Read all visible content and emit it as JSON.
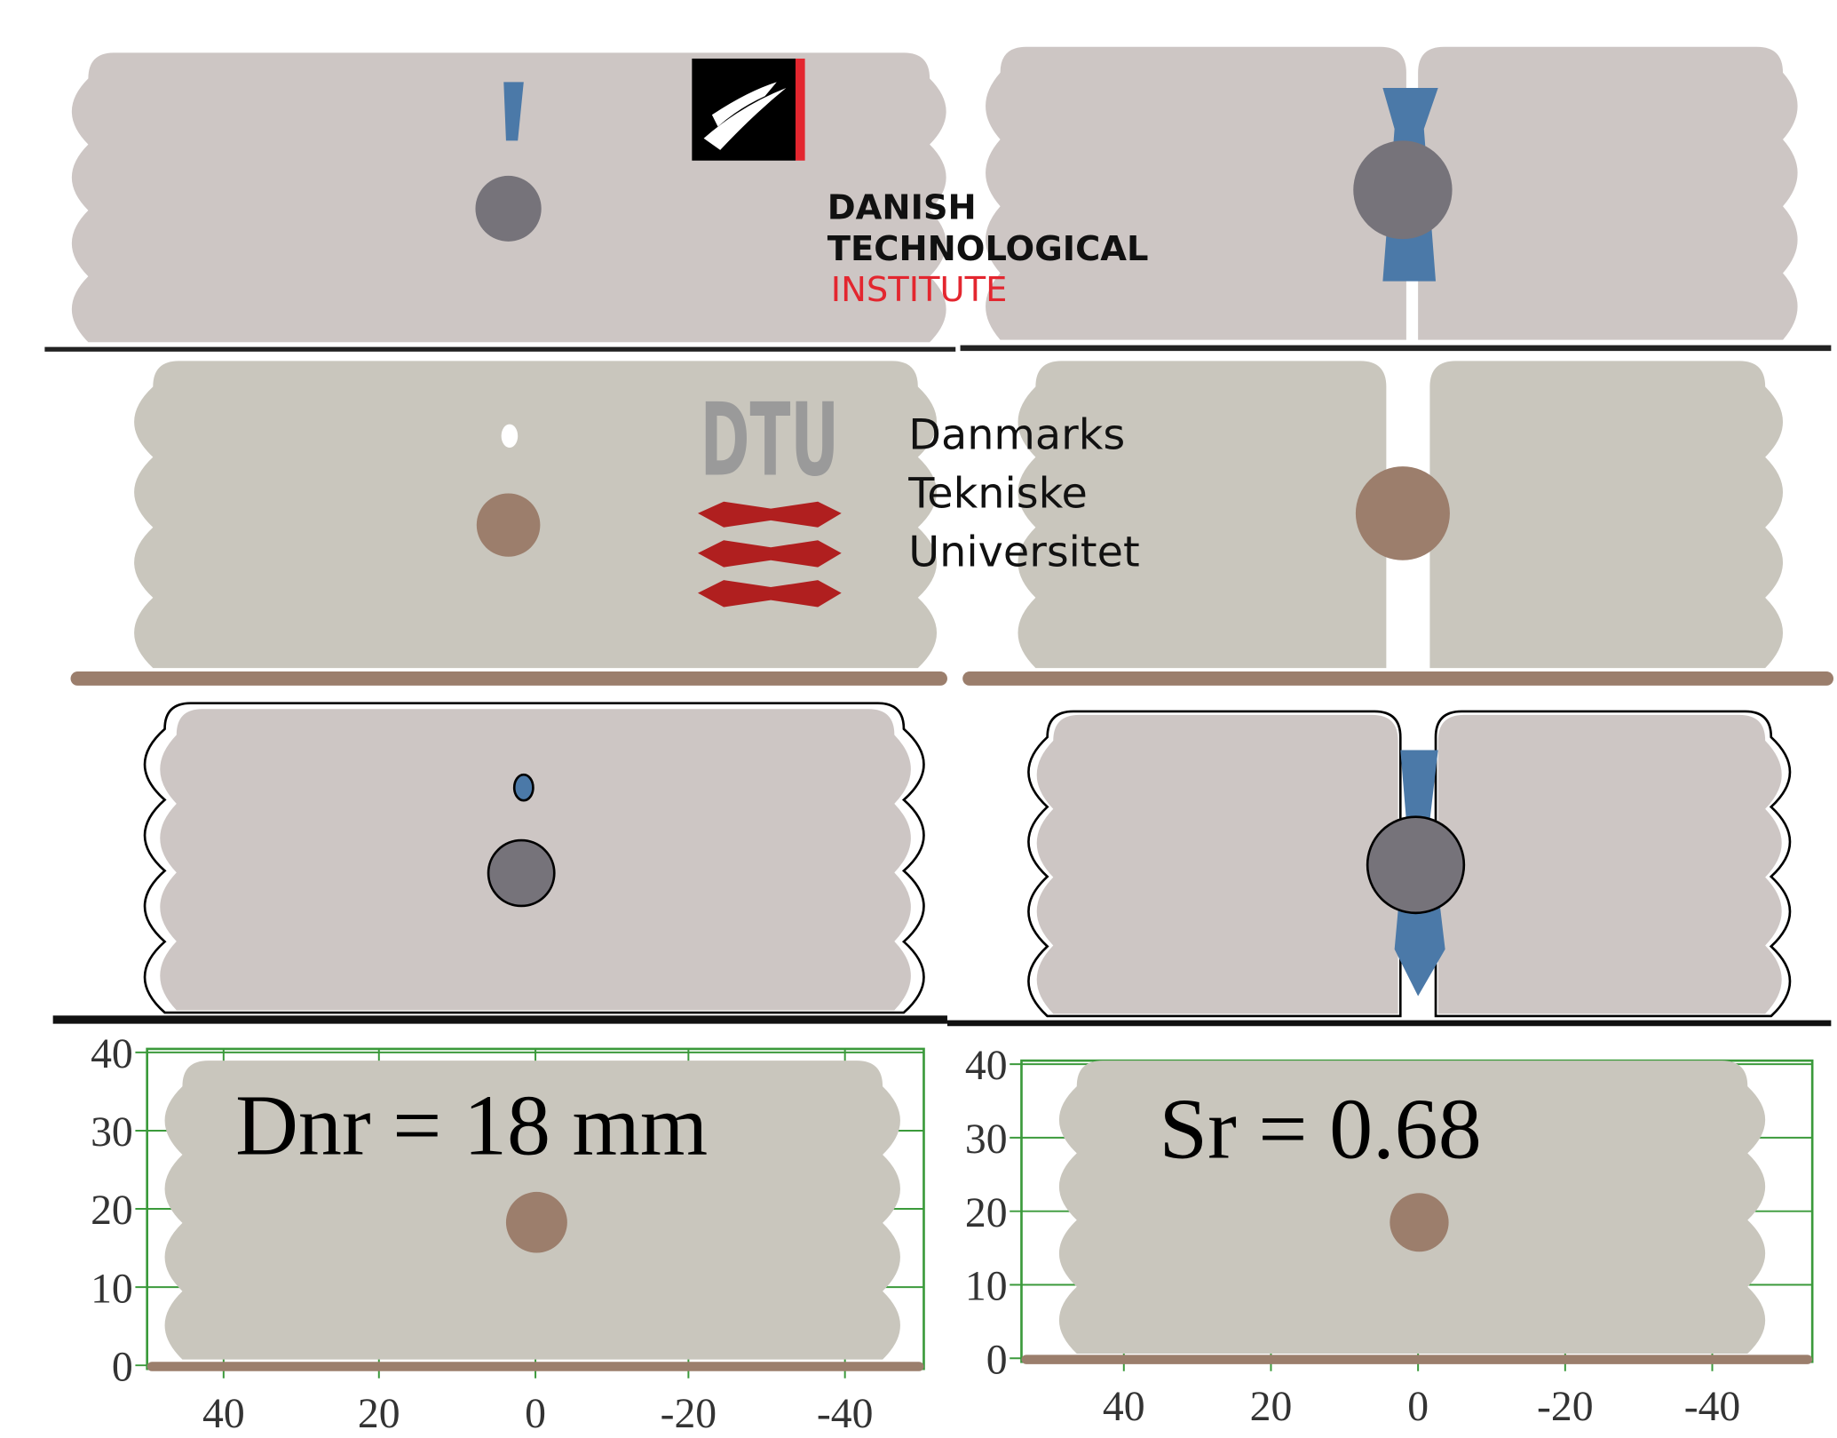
{
  "logos": {
    "dti": {
      "lines": [
        "DANISH",
        "TECHNOLOGICAL",
        "INSTITUTE"
      ]
    },
    "dtu": {
      "mark": "DTU",
      "lines": [
        "Danmarks",
        "Tekniske",
        "Universitet"
      ]
    }
  },
  "panels": [
    {
      "label": "Dnr = 18 mm",
      "yticks": [
        "40",
        "30",
        "20",
        "10",
        "0"
      ],
      "xticks": [
        "40",
        "20",
        "0",
        "-20",
        "-40"
      ]
    },
    {
      "label": "Sr = 0.68",
      "yticks": [
        "40",
        "30",
        "20",
        "10",
        "0"
      ],
      "xticks": [
        "40",
        "20",
        "0",
        "-20",
        "-40"
      ]
    }
  ]
}
